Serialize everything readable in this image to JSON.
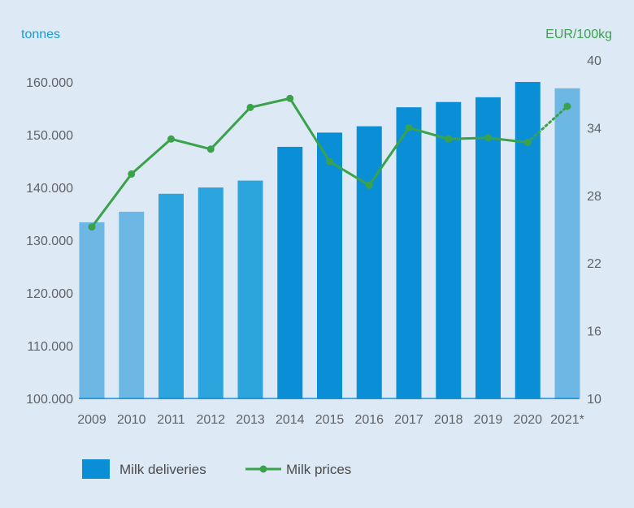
{
  "colors": {
    "background": "#dde9f5",
    "bar_light": "#6cb7e4",
    "bar_mid": "#2ca5df",
    "bar_dark": "#0a8fd6",
    "line": "#3aa24a",
    "left_axis_text": "#1a9ad6",
    "right_axis_text": "#3aa24a",
    "baseline": "#1a8fd6"
  },
  "chart_data": {
    "type": "bar",
    "categories": [
      "2009",
      "2010",
      "2011",
      "2012",
      "2013",
      "2014",
      "2015",
      "2016",
      "2017",
      "2018",
      "2019",
      "2020",
      "2021*"
    ],
    "series": [
      {
        "name": "Milk deliveries",
        "type": "bar",
        "axis": "left",
        "values": [
          133400,
          135400,
          138800,
          140000,
          141300,
          147700,
          150400,
          151600,
          155200,
          156200,
          157100,
          160000,
          158800
        ],
        "bar_shade": [
          "light",
          "light",
          "mid",
          "mid",
          "mid",
          "dark",
          "dark",
          "dark",
          "dark",
          "dark",
          "dark",
          "dark",
          "light"
        ]
      },
      {
        "name": "Milk prices",
        "type": "line",
        "axis": "right",
        "values": [
          25.2,
          29.9,
          33.0,
          32.1,
          35.8,
          36.6,
          31.0,
          28.9,
          34.0,
          33.0,
          33.1,
          32.7,
          35.9
        ],
        "dotted_last_segment": true
      }
    ],
    "left_axis": {
      "label": "tonnes",
      "ylim": [
        100000,
        160000
      ],
      "ticks": [
        100000,
        110000,
        120000,
        130000,
        140000,
        150000,
        160000
      ],
      "tick_labels": [
        "100.000",
        "110.000",
        "120.000",
        "130.000",
        "140.000",
        "150.000",
        "160.000"
      ]
    },
    "right_axis": {
      "label": "EUR/100kg",
      "ylim": [
        10,
        40
      ],
      "ticks": [
        10,
        16,
        22,
        28,
        34,
        40
      ],
      "tick_labels": [
        "10",
        "16",
        "22",
        "28",
        "34",
        "40"
      ]
    },
    "legend": {
      "placement": "bottom-left",
      "items": [
        "Milk deliveries",
        "Milk prices"
      ]
    },
    "grid": false
  }
}
